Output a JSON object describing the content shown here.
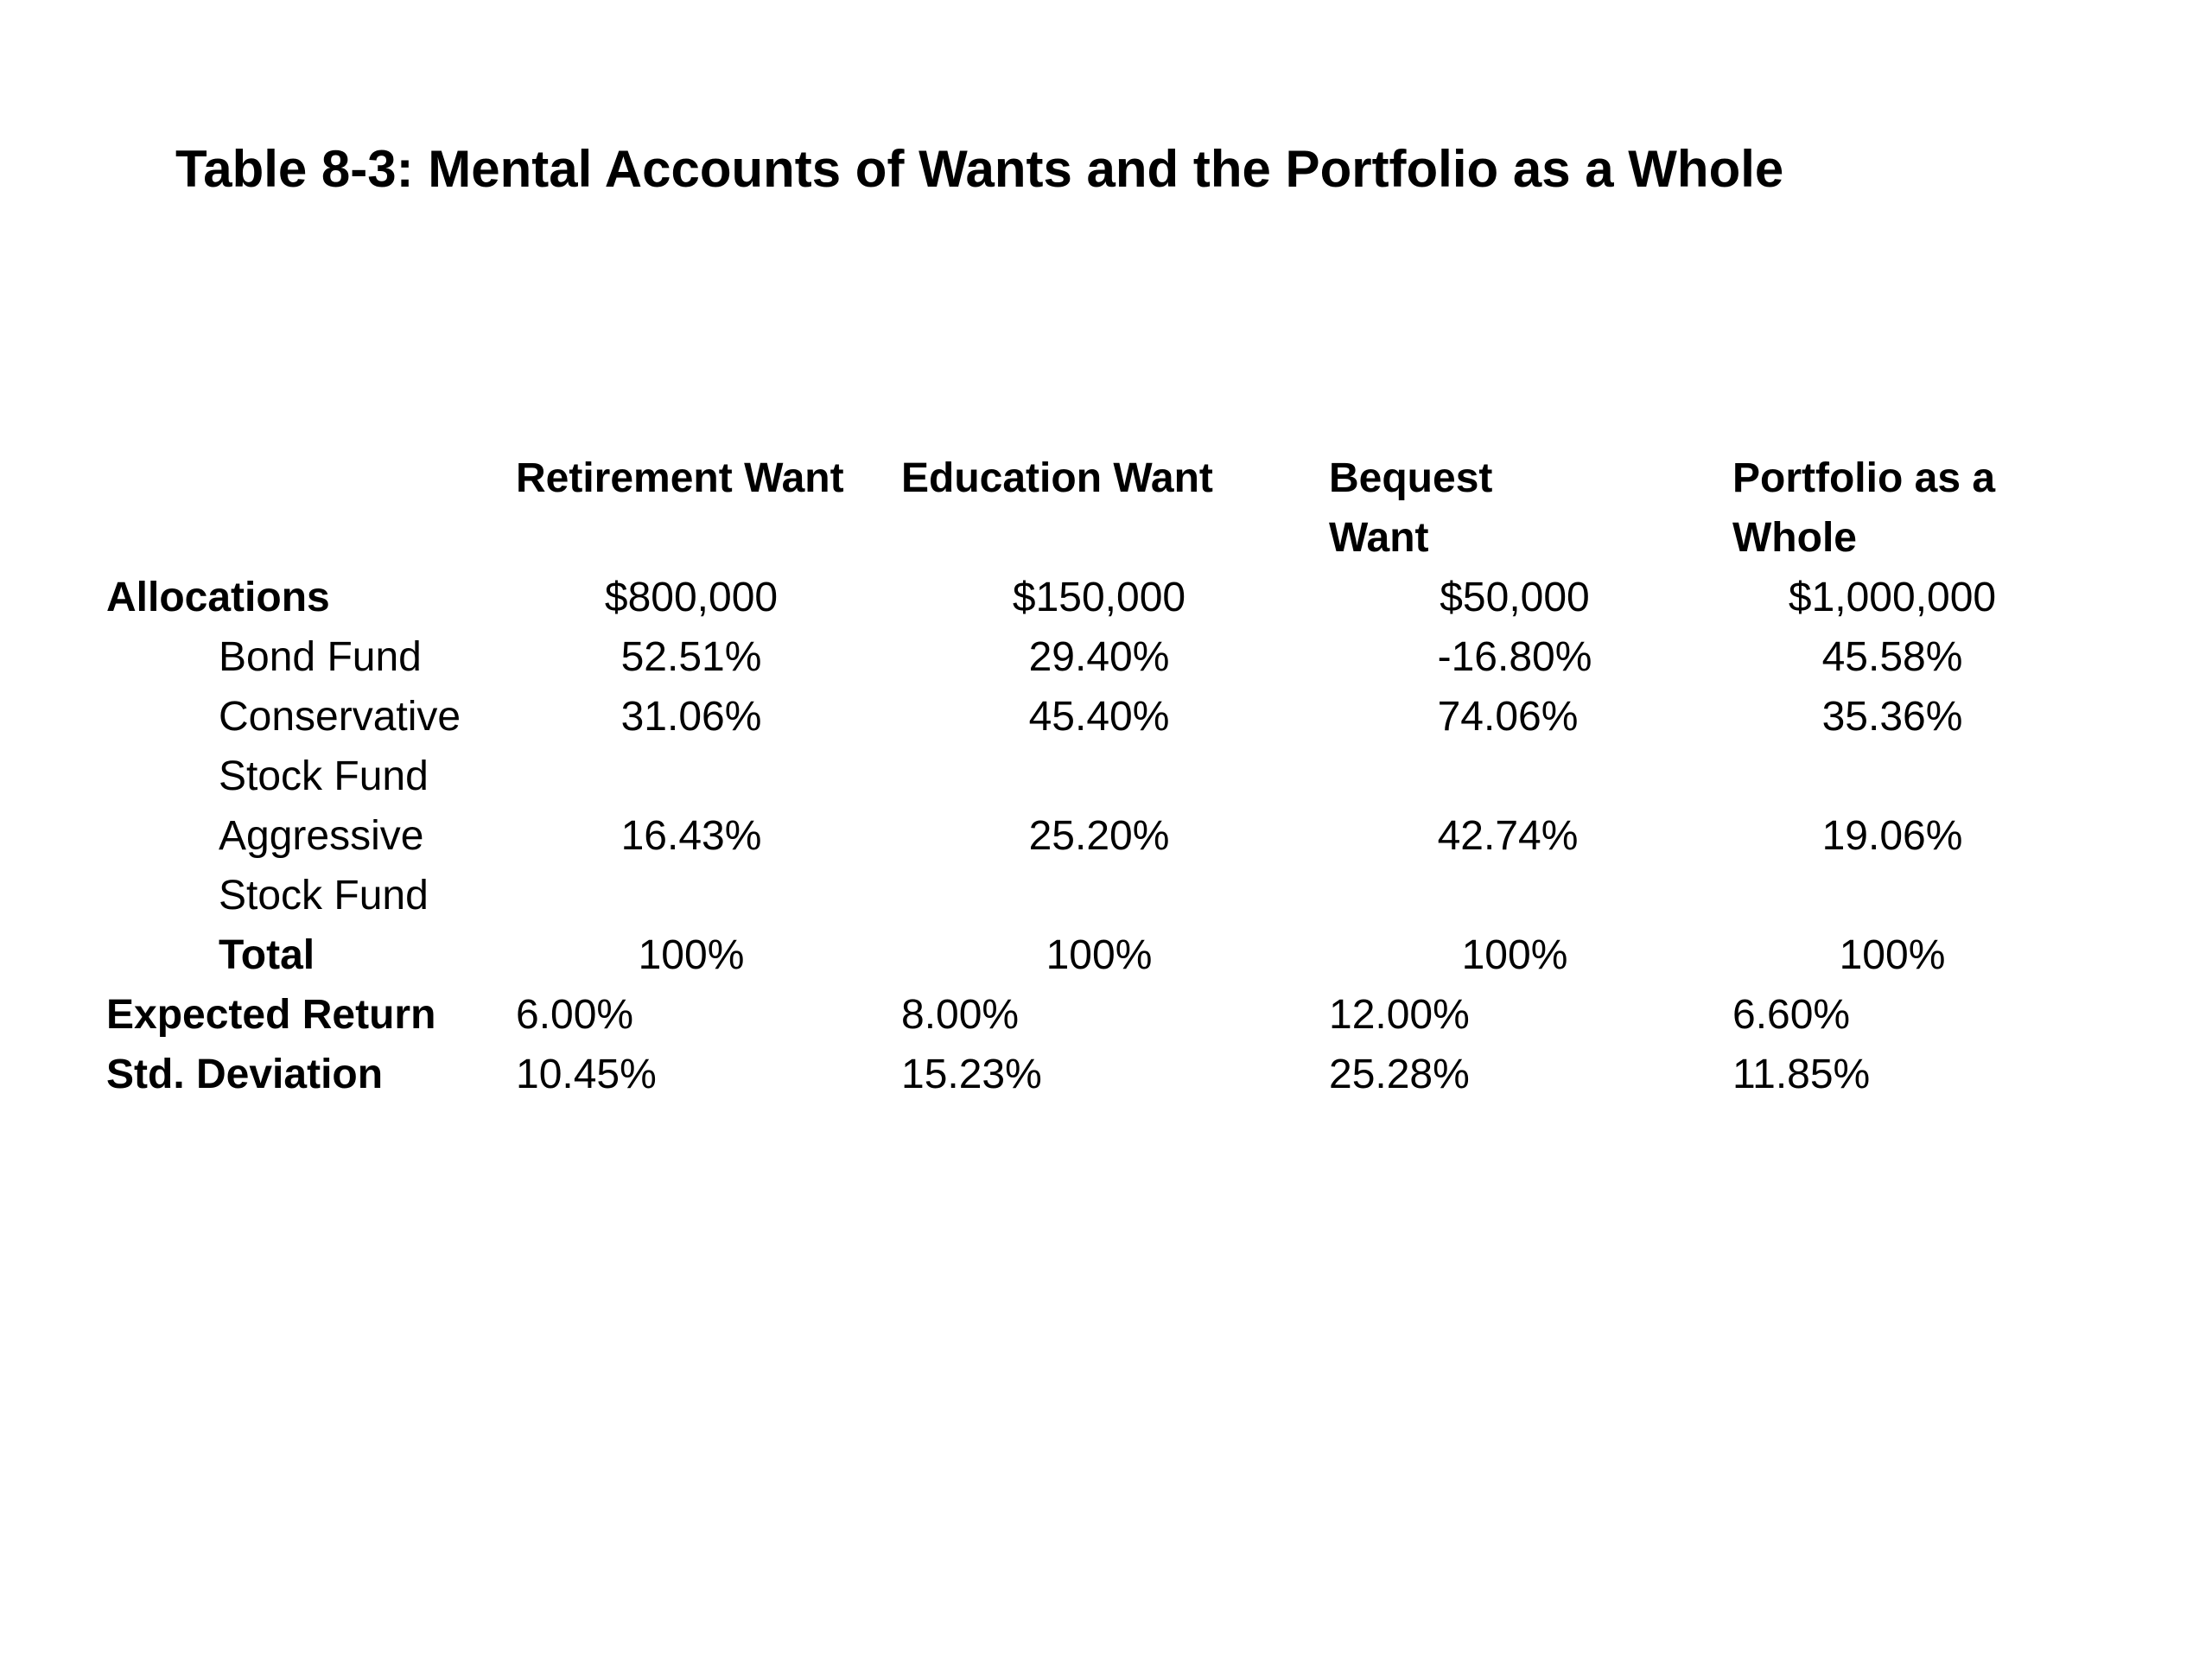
{
  "title": "Table 8-3: Mental Accounts of Wants and the Portfolio as a Whole",
  "columns": {
    "retirement": "Retirement Want",
    "education": "Education Want",
    "bequest_line1": "Bequest",
    "bequest_line2": "Want",
    "portfolio_line1": "Portfolio as a",
    "portfolio_line2": "Whole"
  },
  "rows": {
    "allocations": {
      "label": "Allocations",
      "retirement": "$800,000",
      "education": "$150,000",
      "bequest": "$50,000",
      "portfolio": "$1,000,000"
    },
    "bond_fund": {
      "label": "Bond Fund",
      "retirement": "52.51%",
      "education": "29.40%",
      "bequest": "-16.80%",
      "portfolio": "45.58%"
    },
    "conservative": {
      "label_line1": "Conservative",
      "label_line2": "Stock Fund",
      "retirement": "31.06%",
      "education": "45.40%",
      "bequest": "74.06%",
      "portfolio": "35.36%"
    },
    "aggressive": {
      "label_line1": "Aggressive",
      "label_line2": "Stock Fund",
      "retirement": "16.43%",
      "education": "25.20%",
      "bequest": "42.74%",
      "portfolio": "19.06%"
    },
    "total": {
      "label": "Total",
      "retirement": "100%",
      "education": "100%",
      "bequest": "100%",
      "portfolio": "100%"
    },
    "expected_return": {
      "label": "Expected Return",
      "retirement": "6.00%",
      "education": "8.00%",
      "bequest": "12.00%",
      "portfolio": "6.60%"
    },
    "std_deviation": {
      "label": "Std. Deviation",
      "retirement": "10.45%",
      "education": "15.23%",
      "bequest": "25.28%",
      "portfolio": "11.85%"
    }
  }
}
